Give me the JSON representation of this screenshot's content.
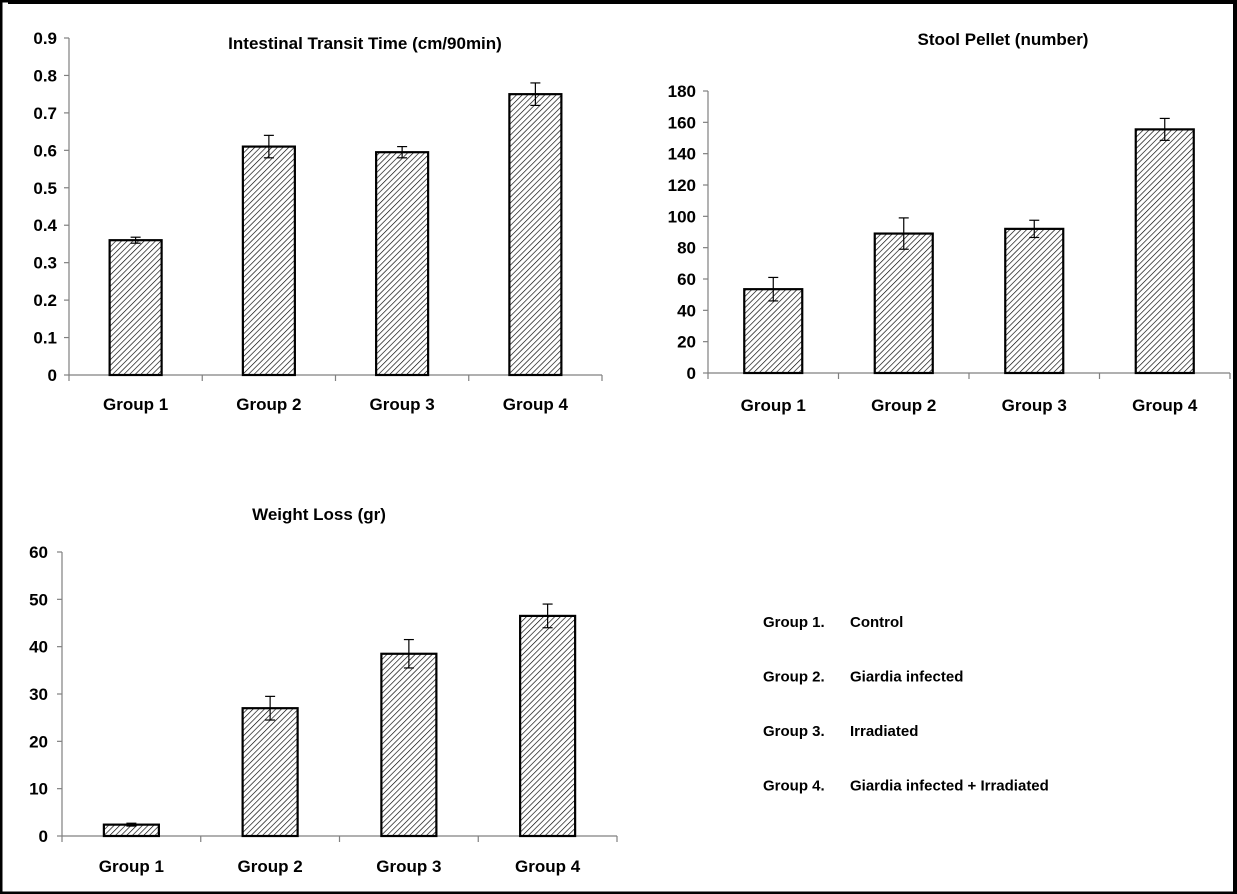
{
  "chart_data": [
    {
      "type": "bar",
      "title": "Intestinal  Transit Time (cm/90min)",
      "categories": [
        "Group 1",
        "Group 2",
        "Group 3",
        "Group 4"
      ],
      "values": [
        0.36,
        0.61,
        0.595,
        0.75
      ],
      "errors": [
        0.008,
        0.03,
        0.015,
        0.03
      ],
      "ylim": [
        0,
        0.9
      ],
      "yticks": [
        "0",
        "0.1",
        "0.2",
        "0.3",
        "0.4",
        "0.5",
        "0.6",
        "0.7",
        "0.8",
        "0.9"
      ],
      "xlabel": "",
      "ylabel": "",
      "grid": false
    },
    {
      "type": "bar",
      "title": "Stool Pellet (number)",
      "categories": [
        "Group 1",
        "Group 2",
        "Group 3",
        "Group 4"
      ],
      "values": [
        53.5,
        89,
        92,
        155.5
      ],
      "errors": [
        7.5,
        10,
        5.5,
        7
      ],
      "ylim": [
        0,
        180
      ],
      "yticks": [
        "0",
        "20",
        "40",
        "60",
        "80",
        "100",
        "120",
        "140",
        "160",
        "180"
      ],
      "xlabel": "",
      "ylabel": "",
      "grid": false
    },
    {
      "type": "bar",
      "title": "Weight Loss (gr)",
      "categories": [
        "Group 1",
        "Group 2",
        "Group 3",
        "Group 4"
      ],
      "values": [
        2.4,
        27,
        38.5,
        46.5
      ],
      "errors": [
        0.3,
        2.5,
        3,
        2.5
      ],
      "ylim": [
        0,
        60
      ],
      "yticks": [
        "0",
        "10",
        "20",
        "30",
        "40",
        "50",
        "60"
      ],
      "xlabel": "",
      "ylabel": "",
      "grid": false
    }
  ],
  "legend": [
    {
      "group": "Group 1.",
      "label": "Control"
    },
    {
      "group": "Group 2.",
      "label": "Giardia infected"
    },
    {
      "group": "Group 3.",
      "label": "Irradiated"
    },
    {
      "group": "Group 4.",
      "label": "Giardia infected + Irradiated"
    }
  ],
  "colors": {
    "bar_hatch": "#000000",
    "bar_fill": "#ffffff",
    "axis": "#808080"
  }
}
